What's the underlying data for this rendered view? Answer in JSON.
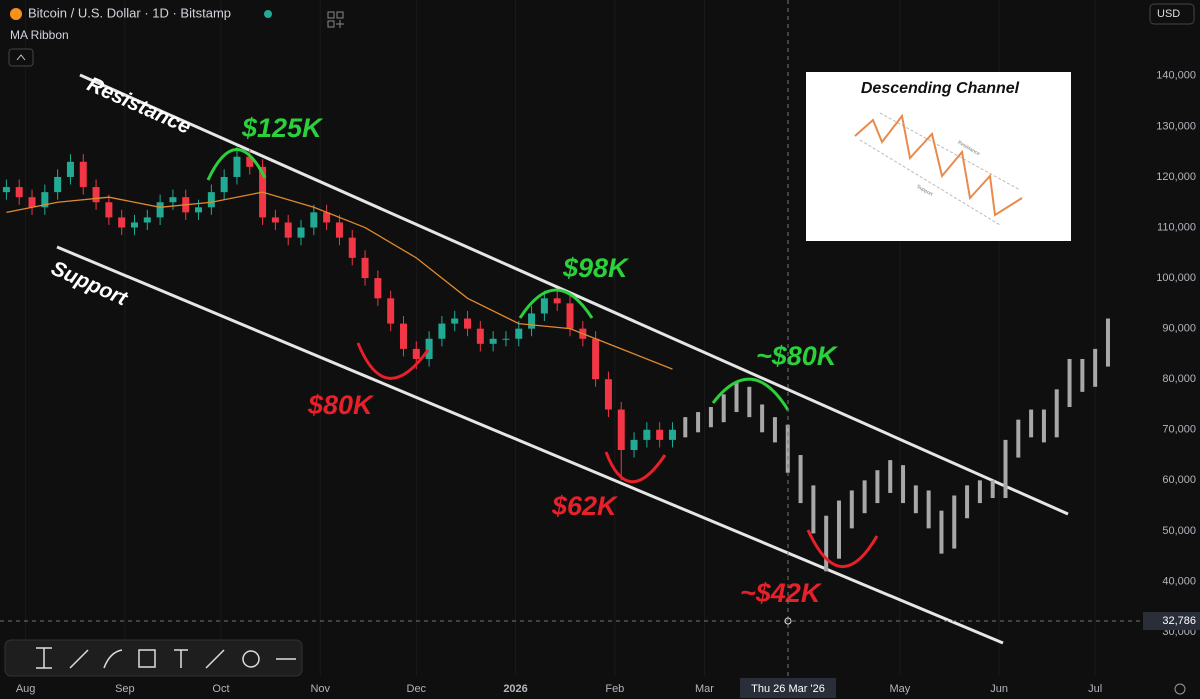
{
  "header": {
    "symbol": "Bitcoin / U.S. Dollar · 1D · Bitstamp",
    "indicator": "MA Ribbon",
    "currency": "USD"
  },
  "crosshair": {
    "price": "32,786",
    "date": "Thu 26 Mar '26"
  },
  "annotations": {
    "resistance": "Resistance",
    "support": "Support",
    "peak1": "$125K",
    "peak2": "$98K",
    "peak3": "~$80K",
    "low1": "$80K",
    "low2": "$62K",
    "low3": "~$42K"
  },
  "inset": {
    "title": "Descending Channel",
    "resistance": "Resistance",
    "support": "Support"
  },
  "chart_data": {
    "type": "candlestick",
    "xlim": [
      -8,
      348
    ],
    "xticks": [
      {
        "value": 0,
        "label": "Aug"
      },
      {
        "value": 31,
        "label": "Sep"
      },
      {
        "value": 61,
        "label": "Oct"
      },
      {
        "value": 92,
        "label": "Nov"
      },
      {
        "value": 122,
        "label": "Dec"
      },
      {
        "value": 153,
        "label": "2026"
      },
      {
        "value": 184,
        "label": "Feb"
      },
      {
        "value": 212,
        "label": "Mar"
      },
      {
        "value": 273,
        "label": "May"
      },
      {
        "value": 304,
        "label": "Jun"
      },
      {
        "value": 334,
        "label": "Jul"
      }
    ],
    "ylim": [
      21300,
      155000
    ],
    "yticks": [
      {
        "value": 30000,
        "label": "30,000"
      },
      {
        "value": 40000,
        "label": "40,000"
      },
      {
        "value": 50000,
        "label": "50,000"
      },
      {
        "value": 60000,
        "label": "60,000"
      },
      {
        "value": 70000,
        "label": "70,000"
      },
      {
        "value": 80000,
        "label": "80,000"
      },
      {
        "value": 90000,
        "label": "90,000"
      },
      {
        "value": 100000,
        "label": "100,000"
      },
      {
        "value": 110000,
        "label": "110,000"
      },
      {
        "value": 120000,
        "label": "120,000"
      },
      {
        "value": 130000,
        "label": "130,000"
      },
      {
        "value": 140000,
        "label": "140,000"
      }
    ],
    "up_color": "#22ab94",
    "down_color": "#f23645",
    "projection_color": "#a8a8a8",
    "ma_color": "#e08a2c",
    "x": [
      -6,
      -2,
      2,
      6,
      10,
      14,
      18,
      22,
      26,
      30,
      34,
      38,
      42,
      46,
      50,
      54,
      58,
      62,
      66,
      70,
      74,
      78,
      82,
      86,
      90,
      94,
      98,
      102,
      106,
      110,
      114,
      118,
      122,
      126,
      130,
      134,
      138,
      142,
      146,
      150,
      154,
      158,
      162,
      166,
      170,
      174,
      178,
      182,
      186,
      190,
      194,
      198,
      202
    ],
    "open": [
      117000,
      118000,
      116000,
      114000,
      117000,
      120000,
      123000,
      118000,
      115000,
      112000,
      110000,
      111000,
      112000,
      115000,
      116000,
      113000,
      114000,
      117000,
      120000,
      124000,
      122000,
      112000,
      111000,
      108000,
      110000,
      113000,
      111000,
      108000,
      104000,
      100000,
      96000,
      91000,
      86000,
      84000,
      88000,
      91000,
      92000,
      90000,
      87000,
      88000,
      88000,
      90000,
      93000,
      96000,
      95000,
      90000,
      88000,
      80000,
      74000,
      66000,
      68000,
      70000,
      68000
    ],
    "high": [
      119500,
      119500,
      117500,
      118500,
      121500,
      124500,
      124500,
      119500,
      116500,
      113500,
      112500,
      113500,
      116500,
      117500,
      117500,
      115500,
      118500,
      121500,
      126000,
      125500,
      123500,
      113500,
      112500,
      111500,
      114500,
      114500,
      112500,
      109500,
      105500,
      101500,
      97500,
      92500,
      87500,
      89500,
      92500,
      93500,
      93500,
      91500,
      89500,
      89500,
      91500,
      94500,
      97500,
      97500,
      96500,
      91500,
      89500,
      81500,
      75500,
      69500,
      71500,
      71500,
      71500
    ],
    "low": [
      115500,
      114500,
      112500,
      112500,
      115500,
      118500,
      116500,
      113500,
      110500,
      108500,
      108500,
      109500,
      110500,
      113500,
      111500,
      111500,
      112500,
      115500,
      118500,
      120500,
      110500,
      109500,
      106500,
      106500,
      108500,
      109500,
      106500,
      102500,
      98500,
      94500,
      89500,
      84500,
      82000,
      82500,
      86500,
      89500,
      88500,
      85500,
      85500,
      86500,
      86500,
      88500,
      91500,
      93500,
      88500,
      86500,
      78500,
      72500,
      60000,
      64500,
      66500,
      66500,
      66500
    ],
    "close": [
      118000,
      116000,
      114000,
      117000,
      120000,
      123000,
      118000,
      115000,
      112000,
      110000,
      111000,
      112000,
      115000,
      116000,
      113000,
      114000,
      117000,
      120000,
      124000,
      122000,
      112000,
      111000,
      108000,
      110000,
      113000,
      111000,
      108000,
      104000,
      100000,
      96000,
      91000,
      86000,
      84000,
      88000,
      91000,
      92000,
      90000,
      87000,
      88000,
      88000,
      90000,
      93000,
      96000,
      95000,
      90000,
      88000,
      80000,
      74000,
      66000,
      68000,
      70000,
      68000,
      70000
    ],
    "ma_x": [
      -6,
      10,
      26,
      42,
      58,
      74,
      90,
      106,
      122,
      138,
      154,
      170,
      186,
      202
    ],
    "ma": [
      113000,
      115000,
      116000,
      114000,
      115000,
      117000,
      114000,
      110000,
      104000,
      96000,
      91000,
      90000,
      86000,
      82000
    ],
    "proj_x": [
      206,
      210,
      214,
      218,
      222,
      226,
      230,
      234,
      238,
      242,
      246,
      250,
      254,
      258,
      262,
      266,
      270,
      274,
      278,
      282,
      286,
      290,
      294,
      298,
      302,
      306,
      310,
      314,
      318,
      322,
      326,
      330,
      334,
      338
    ],
    "proj_high": [
      72500,
      73500,
      74500,
      77000,
      79500,
      78500,
      75000,
      72500,
      71000,
      65000,
      59000,
      53000,
      56000,
      58000,
      60000,
      62000,
      64000,
      63000,
      59000,
      58000,
      54000,
      57000,
      59000,
      60000,
      60000,
      68000,
      72000,
      74000,
      74000,
      78000,
      84000,
      84000,
      86000,
      92000
    ],
    "proj_low": [
      68500,
      69500,
      70500,
      71500,
      73500,
      72500,
      69500,
      67500,
      61500,
      55500,
      49500,
      42000,
      44500,
      50500,
      53500,
      55500,
      57500,
      55500,
      53500,
      50500,
      45500,
      46500,
      52500,
      55500,
      56500,
      56500,
      64500,
      68500,
      67500,
      68500,
      74500,
      77500,
      78500,
      82500
    ]
  }
}
